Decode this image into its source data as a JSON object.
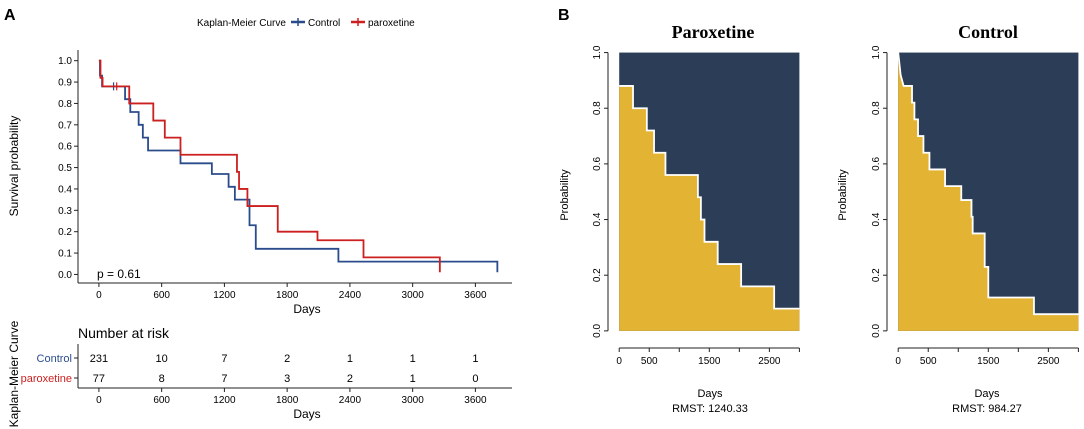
{
  "panels": [
    {
      "letter": "A"
    },
    {
      "letter": "B"
    }
  ],
  "colors": {
    "control": "#2b4c8c",
    "paroxetine": "#cc1f1f",
    "survived": "#e3b334",
    "event": "#2c3e57",
    "axis": "#222222"
  },
  "chart_data": [
    {
      "id": "km",
      "type": "line",
      "title": "",
      "legend": {
        "title": "Kaplan-Meier Curve",
        "position": "top",
        "labels": [
          "Control",
          "paroxetine"
        ]
      },
      "xlabel": "Days",
      "ylabel": "Survival probability",
      "xlim": [
        -200,
        3950
      ],
      "ylim": [
        -0.04,
        1.05
      ],
      "xticks": [
        0,
        600,
        1200,
        1800,
        2400,
        3000,
        3600
      ],
      "yticks": [
        0.0,
        0.1,
        0.2,
        0.3,
        0.4,
        0.5,
        0.6,
        0.7,
        0.8,
        0.9,
        1.0
      ],
      "annotation": "p = 0.61",
      "series": [
        {
          "name": "Control",
          "steps": [
            [
              0,
              1.0
            ],
            [
              10,
              0.93
            ],
            [
              30,
              0.88
            ],
            [
              230,
              0.88
            ],
            [
              250,
              0.82
            ],
            [
              300,
              0.76
            ],
            [
              380,
              0.7
            ],
            [
              420,
              0.64
            ],
            [
              470,
              0.58
            ],
            [
              770,
              0.58
            ],
            [
              780,
              0.52
            ],
            [
              1060,
              0.52
            ],
            [
              1080,
              0.47
            ],
            [
              1220,
              0.47
            ],
            [
              1240,
              0.41
            ],
            [
              1300,
              0.35
            ],
            [
              1410,
              0.35
            ],
            [
              1440,
              0.23
            ],
            [
              1500,
              0.12
            ],
            [
              2260,
              0.12
            ],
            [
              2290,
              0.06
            ],
            [
              3810,
              0.06
            ],
            [
              3810,
              0.01
            ]
          ],
          "censor_x": [
            140
          ]
        },
        {
          "name": "paroxetine",
          "steps": [
            [
              0,
              1.0
            ],
            [
              15,
              0.92
            ],
            [
              35,
              0.88
            ],
            [
              270,
              0.88
            ],
            [
              290,
              0.8
            ],
            [
              500,
              0.8
            ],
            [
              520,
              0.72
            ],
            [
              610,
              0.72
            ],
            [
              630,
              0.64
            ],
            [
              760,
              0.64
            ],
            [
              780,
              0.56
            ],
            [
              1300,
              0.56
            ],
            [
              1320,
              0.48
            ],
            [
              1340,
              0.4
            ],
            [
              1400,
              0.4
            ],
            [
              1420,
              0.32
            ],
            [
              1690,
              0.32
            ],
            [
              1710,
              0.2
            ],
            [
              2070,
              0.2
            ],
            [
              2090,
              0.16
            ],
            [
              2500,
              0.16
            ],
            [
              2530,
              0.08
            ],
            [
              3260,
              0.08
            ],
            [
              3260,
              0.01
            ]
          ],
          "censor_x": [
            170
          ]
        }
      ]
    },
    {
      "id": "risk",
      "type": "table",
      "title": "Number at risk",
      "side_label": "Kaplan-Meier Curve",
      "xlabel": "Days",
      "xticks": [
        0,
        600,
        1200,
        1800,
        2400,
        3000,
        3600
      ],
      "rows": [
        {
          "name": "Control",
          "values": [
            231,
            10,
            7,
            2,
            1,
            1,
            1
          ]
        },
        {
          "name": "paroxetine",
          "values": [
            77,
            8,
            7,
            3,
            2,
            1,
            0
          ]
        }
      ]
    },
    {
      "id": "rmst-paroxetine",
      "type": "area",
      "title": "Paroxetine",
      "xlabel": "Days",
      "ylabel": "Probability",
      "rmst_label": "RMST: 1240.33",
      "xlim": [
        -120,
        3060
      ],
      "ylim": [
        -0.04,
        1.02
      ],
      "xticks": [
        0,
        500,
        1500,
        2500
      ],
      "xtick_labels": [
        "0",
        "500",
        "1500",
        "2500"
      ],
      "yticks": [
        0.0,
        0.2,
        0.4,
        0.6,
        0.8,
        1.0
      ],
      "max_time": 3000,
      "steps": [
        [
          0,
          0.88
        ],
        [
          230,
          0.88
        ],
        [
          230,
          0.8
        ],
        [
          460,
          0.8
        ],
        [
          460,
          0.72
        ],
        [
          580,
          0.72
        ],
        [
          580,
          0.64
        ],
        [
          770,
          0.64
        ],
        [
          770,
          0.56
        ],
        [
          1310,
          0.56
        ],
        [
          1310,
          0.48
        ],
        [
          1360,
          0.48
        ],
        [
          1360,
          0.4
        ],
        [
          1420,
          0.4
        ],
        [
          1420,
          0.32
        ],
        [
          1640,
          0.32
        ],
        [
          1640,
          0.24
        ],
        [
          2030,
          0.24
        ],
        [
          2030,
          0.16
        ],
        [
          2580,
          0.16
        ],
        [
          2580,
          0.08
        ],
        [
          3000,
          0.08
        ]
      ]
    },
    {
      "id": "rmst-control",
      "type": "area",
      "title": "Control",
      "xlabel": "Days",
      "ylabel": "Probability",
      "rmst_label": "RMST: 984.27",
      "xlim": [
        -120,
        3060
      ],
      "ylim": [
        -0.04,
        1.02
      ],
      "xticks": [
        0,
        500,
        1500,
        2500
      ],
      "xtick_labels": [
        "0",
        "500",
        "1500",
        "2500"
      ],
      "yticks": [
        0.0,
        0.2,
        0.4,
        0.6,
        0.8,
        1.0
      ],
      "max_time": 3000,
      "steps": [
        [
          0,
          1.0
        ],
        [
          20,
          0.96
        ],
        [
          40,
          0.92
        ],
        [
          90,
          0.88
        ],
        [
          230,
          0.88
        ],
        [
          230,
          0.82
        ],
        [
          270,
          0.82
        ],
        [
          270,
          0.76
        ],
        [
          330,
          0.76
        ],
        [
          330,
          0.7
        ],
        [
          420,
          0.7
        ],
        [
          420,
          0.64
        ],
        [
          520,
          0.64
        ],
        [
          520,
          0.58
        ],
        [
          780,
          0.58
        ],
        [
          780,
          0.52
        ],
        [
          1050,
          0.52
        ],
        [
          1050,
          0.47
        ],
        [
          1220,
          0.47
        ],
        [
          1220,
          0.41
        ],
        [
          1240,
          0.41
        ],
        [
          1240,
          0.35
        ],
        [
          1440,
          0.35
        ],
        [
          1440,
          0.23
        ],
        [
          1500,
          0.23
        ],
        [
          1500,
          0.12
        ],
        [
          2260,
          0.12
        ],
        [
          2260,
          0.06
        ],
        [
          3000,
          0.06
        ]
      ]
    }
  ]
}
